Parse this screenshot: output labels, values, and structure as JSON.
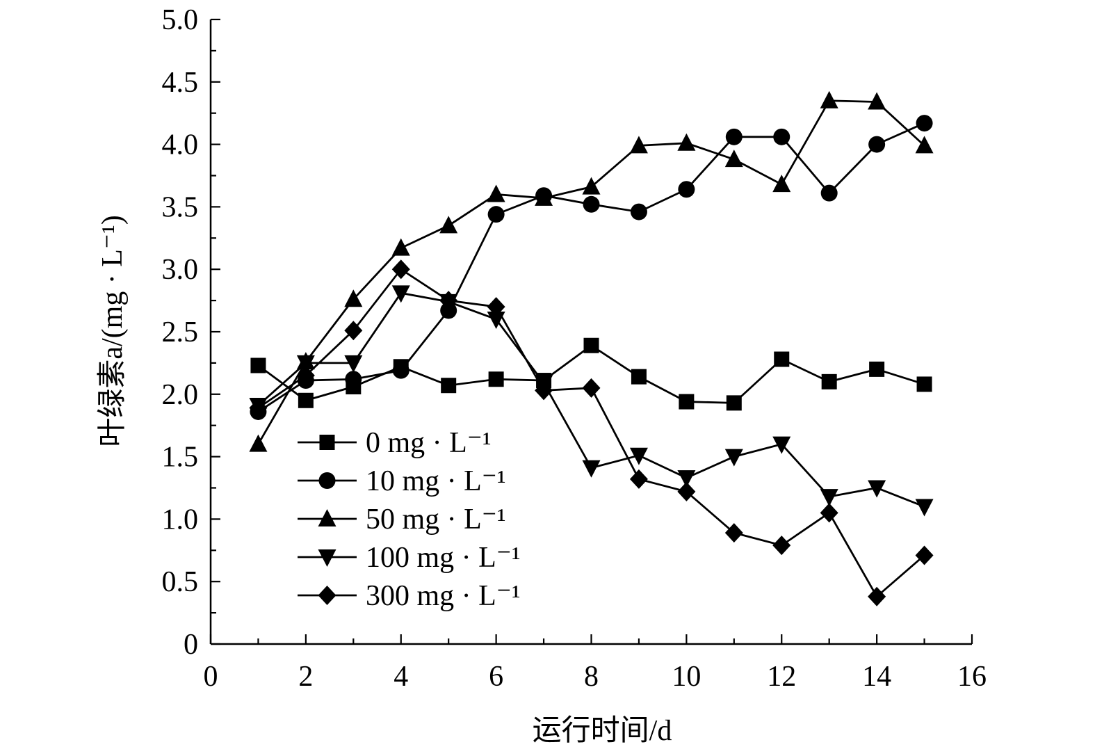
{
  "chart_data": {
    "type": "line",
    "title": "",
    "xlabel": "运行时间/d",
    "ylabel": "叶绿素a/(mg · L⁻¹)",
    "xlim": [
      0,
      16
    ],
    "ylim": [
      0,
      5.0
    ],
    "x_ticks": [
      0,
      2,
      4,
      6,
      8,
      10,
      12,
      14,
      16
    ],
    "x_tick_labels": [
      "0",
      "2",
      "4",
      "6",
      "8",
      "10",
      "12",
      "14",
      "16"
    ],
    "y_ticks": [
      0,
      0.5,
      1.0,
      1.5,
      2.0,
      2.5,
      3.0,
      3.5,
      4.0,
      4.5,
      5.0
    ],
    "y_tick_labels": [
      "0",
      "0.5",
      "1.0",
      "1.5",
      "2.0",
      "2.5",
      "3.0",
      "3.5",
      "4.0",
      "4.5",
      "5.0"
    ],
    "grid": false,
    "legend_position": "lower-left",
    "x": [
      1,
      2,
      3,
      4,
      5,
      6,
      7,
      8,
      9,
      10,
      11,
      12,
      13,
      14,
      15
    ],
    "series": [
      {
        "name": "0 mg · L⁻¹",
        "marker": "square",
        "values": [
          2.23,
          1.95,
          2.06,
          2.22,
          2.07,
          2.12,
          2.11,
          2.39,
          2.14,
          1.94,
          1.93,
          2.28,
          2.1,
          2.2,
          2.08
        ]
      },
      {
        "name": "10 mg · L⁻¹",
        "marker": "circle",
        "values": [
          1.86,
          2.11,
          2.12,
          2.19,
          2.67,
          3.44,
          3.59,
          3.52,
          3.46,
          3.64,
          4.06,
          4.06,
          3.61,
          4.0,
          4.17
        ]
      },
      {
        "name": "50 mg · L⁻¹",
        "marker": "triangle-up",
        "values": [
          1.6,
          2.26,
          2.76,
          3.17,
          3.35,
          3.6,
          3.57,
          3.66,
          3.99,
          4.01,
          3.88,
          3.68,
          4.35,
          4.34,
          3.99
        ]
      },
      {
        "name": "100 mg · L⁻¹",
        "marker": "triangle-down",
        "values": [
          1.91,
          2.25,
          2.25,
          2.81,
          2.74,
          2.6,
          2.09,
          1.41,
          1.51,
          1.33,
          1.5,
          1.6,
          1.18,
          1.25,
          1.1
        ]
      },
      {
        "name": "300 mg · L⁻¹",
        "marker": "diamond",
        "values": [
          1.89,
          2.15,
          2.51,
          3.0,
          2.75,
          2.7,
          2.03,
          2.05,
          1.32,
          1.22,
          0.89,
          0.79,
          1.05,
          0.38,
          0.71
        ]
      }
    ]
  }
}
